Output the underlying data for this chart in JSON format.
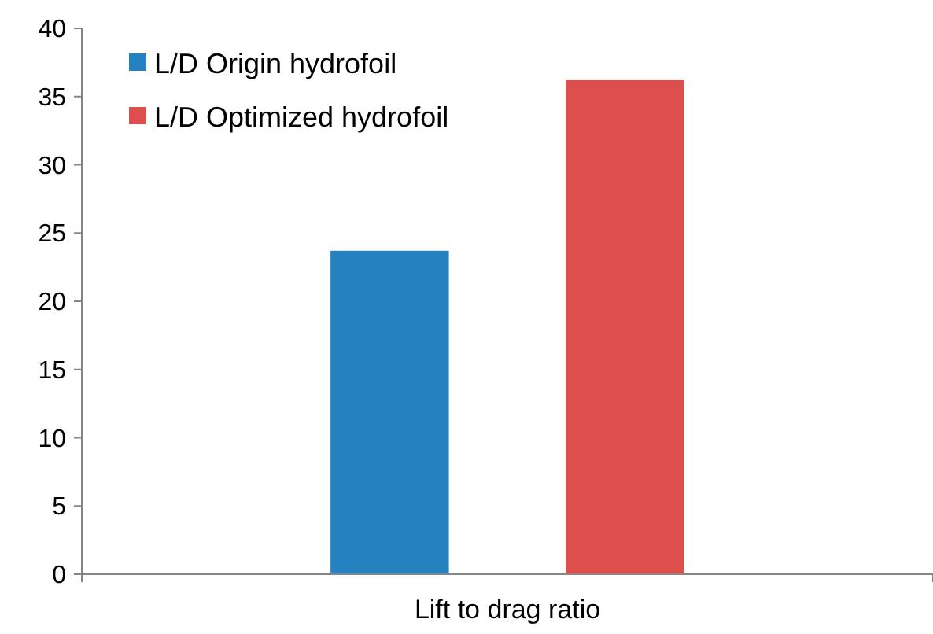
{
  "chart_data": {
    "type": "bar",
    "categories": [
      "Lift to drag ratio"
    ],
    "series": [
      {
        "name": "L/D Origin hydrofoil",
        "color": "#2581c0",
        "values": [
          23.7
        ]
      },
      {
        "name": "L/D Optimized hydrofoil",
        "color": "#dd4f4d",
        "values": [
          36.2
        ]
      }
    ],
    "ylim": [
      0,
      40
    ],
    "yticks": [
      0,
      5,
      10,
      15,
      20,
      25,
      30,
      35,
      40
    ],
    "grid": false,
    "legend": "top left"
  }
}
